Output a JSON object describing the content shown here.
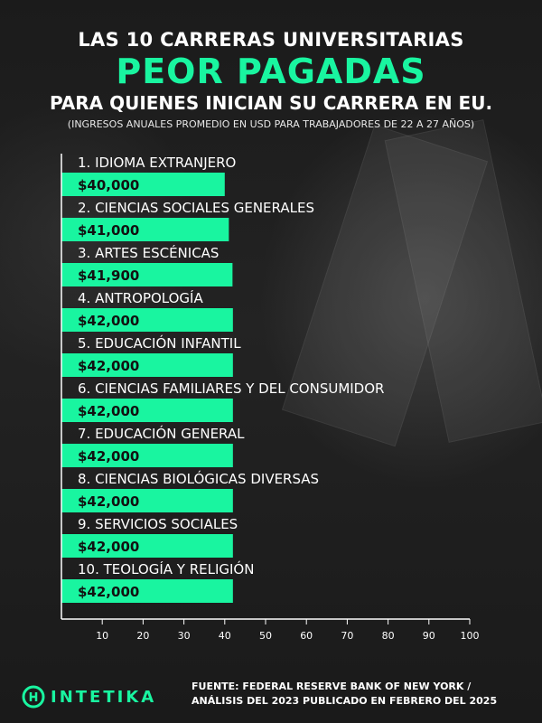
{
  "header": {
    "line1": "LAS 10 CARRERAS UNIVERSITARIAS",
    "line2": "PEOR PAGADAS",
    "line3": "PARA QUIENES INICIAN SU CARRERA EN EU.",
    "line4": "(INGRESOS ANUALES PROMEDIO EN USD PARA TRABAJADORES DE 22 A 27 AÑOS)"
  },
  "colors": {
    "accent": "#19f5a0",
    "background": "#151515",
    "text": "#ffffff"
  },
  "chart_data": {
    "type": "bar",
    "orientation": "horizontal",
    "categories": [
      "1. IDIOMA EXTRANJERO",
      "2. CIENCIAS SOCIALES GENERALES",
      "3. ARTES ESCÉNICAS",
      "4. ANTROPOLOGÍA",
      "5. EDUCACIÓN INFANTIL",
      "6. CIENCIAS FAMILIARES Y DEL CONSUMIDOR",
      "7. EDUCACIÓN GENERAL",
      "8. CIENCIAS BIOLÓGICAS DIVERSAS",
      "9. SERVICIOS SOCIALES",
      "10. TEOLOGÍA Y RELIGIÓN"
    ],
    "values": [
      40,
      41,
      41.9,
      42,
      42,
      42,
      42,
      42,
      42,
      42
    ],
    "value_labels": [
      "$40,000",
      "$41,000",
      "$41,900",
      "$42,000",
      "$42,000",
      "$42,000",
      "$42,000",
      "$42,000",
      "$42,000",
      "$42,000"
    ],
    "xticks": [
      10,
      20,
      30,
      40,
      50,
      60,
      70,
      80,
      90,
      100
    ],
    "xlim": [
      0,
      100
    ],
    "grid": false
  },
  "footer": {
    "brand": "INTETIKA",
    "source_line1": "FUENTE: FEDERAL RESERVE BANK OF NEW YORK /",
    "source_line2": "ANÁLISIS DEL 2023 PUBLICADO EN FEBRERO DEL 2025"
  }
}
